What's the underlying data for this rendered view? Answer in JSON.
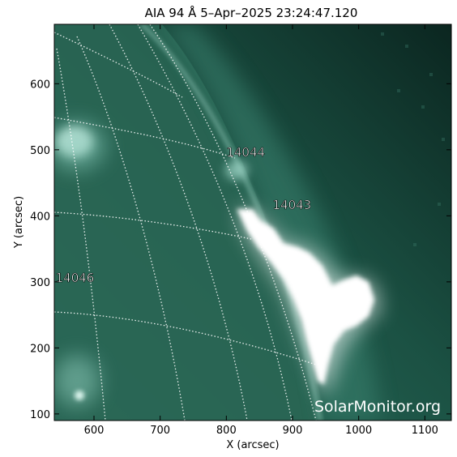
{
  "figure": {
    "title": "AIA 94 Å  5–Apr–2025 23:24:47.120",
    "xlabel": "X (arcsec)",
    "ylabel": "Y (arcsec)",
    "x_range": [
      540,
      1140
    ],
    "y_range": [
      90,
      690
    ],
    "x_ticks": [
      {
        "value": 600,
        "label": "600"
      },
      {
        "value": 700,
        "label": "700"
      },
      {
        "value": 800,
        "label": "800"
      },
      {
        "value": 900,
        "label": "900"
      },
      {
        "value": 1000,
        "label": "1000"
      },
      {
        "value": 1100,
        "label": "1100"
      }
    ],
    "y_ticks": [
      {
        "value": 100,
        "label": "100"
      },
      {
        "value": 200,
        "label": "200"
      },
      {
        "value": 300,
        "label": "300"
      },
      {
        "value": 400,
        "label": "400"
      },
      {
        "value": 500,
        "label": "500"
      },
      {
        "value": 600,
        "label": "600"
      }
    ]
  },
  "regions": [
    {
      "label": "14044",
      "x": 800,
      "y": 490
    },
    {
      "label": "14043",
      "x": 870,
      "y": 410
    },
    {
      "label": "14046",
      "x": 542,
      "y": 300
    }
  ],
  "watermark": "SolarMonitor.org",
  "colors": {
    "background": "#1f5a4c",
    "disk": "#24604f",
    "corona": "#17493d",
    "space": "#0d2a22",
    "flare": "#ffffff",
    "grid": "#ffffff"
  }
}
